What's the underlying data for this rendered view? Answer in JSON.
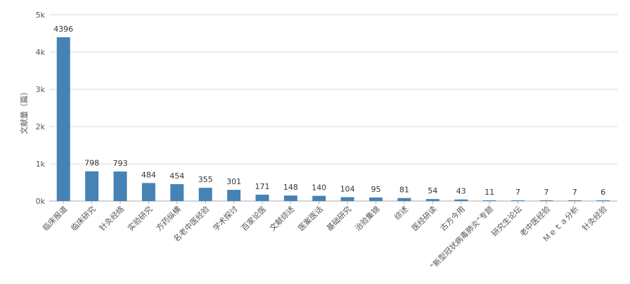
{
  "chart_data": {
    "type": "bar",
    "title": "",
    "xlabel": "",
    "ylabel": "文献量（篇）",
    "ylim": [
      0,
      5000
    ],
    "y_ticks": [
      {
        "value": 0,
        "label": "0k"
      },
      {
        "value": 1000,
        "label": "1k"
      },
      {
        "value": 2000,
        "label": "2k"
      },
      {
        "value": 3000,
        "label": "3k"
      },
      {
        "value": 4000,
        "label": "4k"
      },
      {
        "value": 5000,
        "label": "5k"
      }
    ],
    "grid": true,
    "legend": "none",
    "bar_color": "#4682b4",
    "categories": [
      "临床报道",
      "临床研究",
      "针灸经络",
      "实验研究",
      "方药纵横",
      "名老中医经验",
      "学术探讨",
      "百家论医",
      "文献综述",
      "医案医话",
      "基础研究",
      "治验集锦",
      "综述",
      "医经研读",
      "古方今用",
      "“新型冠状病毒肺炎”专题",
      "研究生论坛",
      "老中医经验",
      "Ｍｅｔａ分析",
      "针灸经验"
    ],
    "values": [
      4396,
      798,
      793,
      484,
      454,
      355,
      301,
      171,
      148,
      140,
      104,
      95,
      81,
      54,
      43,
      11,
      7,
      7,
      7,
      6
    ]
  }
}
